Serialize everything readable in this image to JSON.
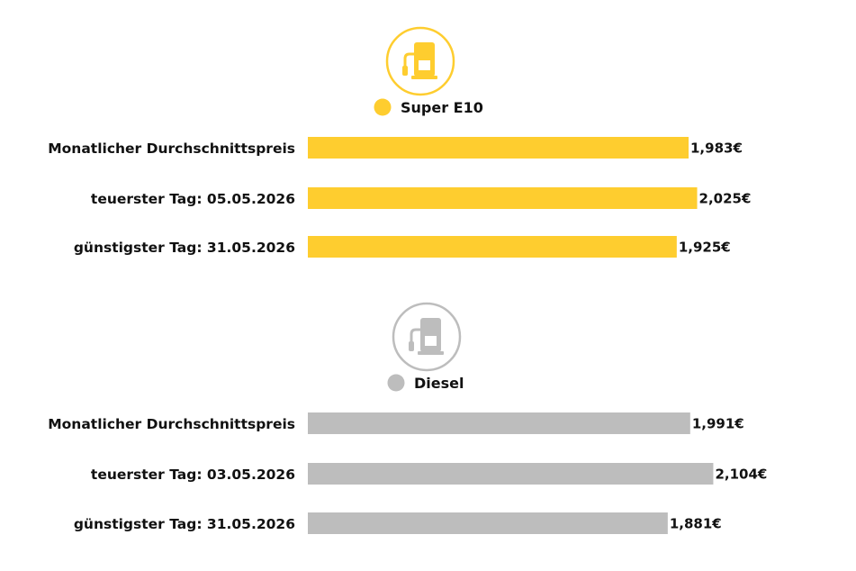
{
  "colors": {
    "super_e10": "#fecd2f",
    "diesel": "#bdbdbd",
    "text": "#111111"
  },
  "chart_data": [
    {
      "type": "bar",
      "orientation": "horizontal",
      "icon": "fuel-pump-icon",
      "legend": "Super E10",
      "color": "#fecd2f",
      "categories": [
        "Monatlicher Durchschnittspreis",
        "teuerster Tag: 05.05.2026",
        "günstigster Tag: 31.05.2026"
      ],
      "values": [
        1.983,
        2.025,
        1.925
      ],
      "value_labels": [
        "1,983€",
        "2,025€",
        "1,925€"
      ],
      "grid": false,
      "legend_position": "above bars"
    },
    {
      "type": "bar",
      "orientation": "horizontal",
      "icon": "fuel-pump-icon",
      "legend": "Diesel",
      "color": "#bdbdbd",
      "categories": [
        "Monatlicher Durchschnittspreis",
        "teuerster Tag: 03.05.2026",
        "günstigster Tag: 31.05.2026"
      ],
      "values": [
        1.991,
        2.104,
        1.881
      ],
      "value_labels": [
        "1,991€",
        "2,104€",
        "1,881€"
      ],
      "grid": false,
      "legend_position": "above bars"
    }
  ]
}
